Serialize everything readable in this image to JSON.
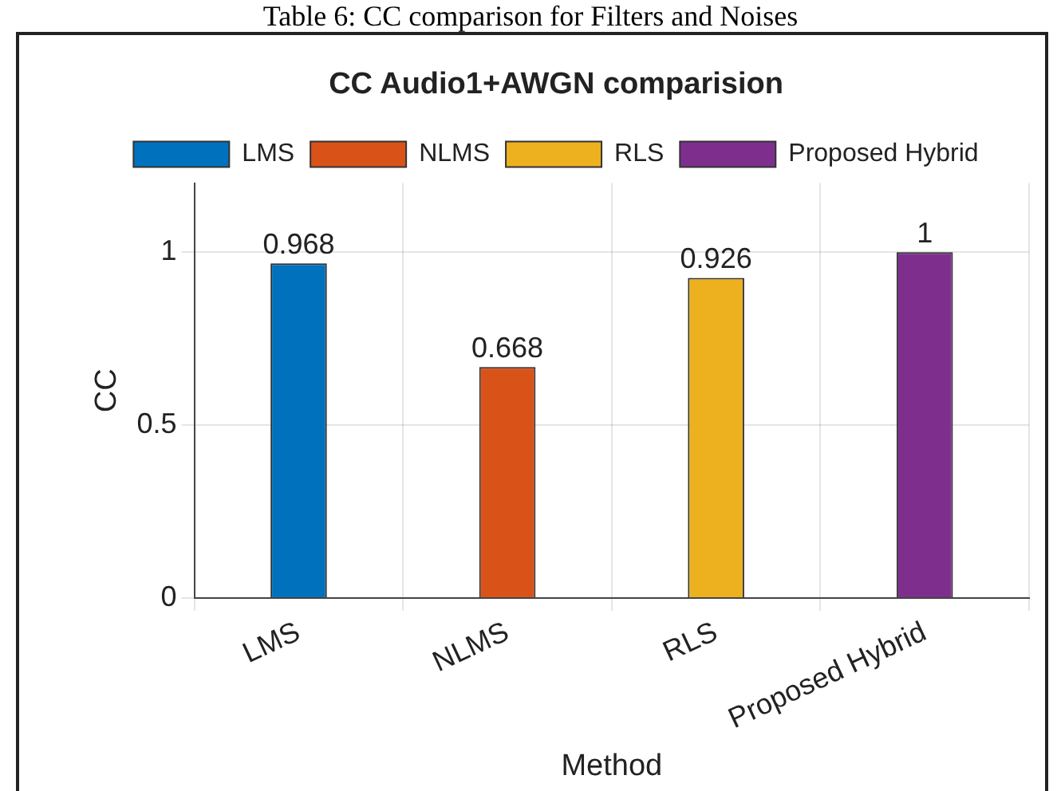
{
  "chart_data": {
    "type": "bar",
    "title": "CC Audio1+AWGN comparision",
    "xlabel": "Method",
    "ylabel": "CC",
    "annotations": [
      "Table 6: CC comparison for Filters and Noises"
    ],
    "categories": [
      "LMS",
      "NLMS",
      "RLS",
      "Proposed Hybrid"
    ],
    "series": [
      {
        "name": "LMS",
        "color": "#0072bd",
        "values": [
          0.968,
          null,
          null,
          null
        ]
      },
      {
        "name": "NLMS",
        "color": "#d95319",
        "values": [
          null,
          0.668,
          null,
          null
        ]
      },
      {
        "name": "RLS",
        "color": "#edb120",
        "values": [
          null,
          null,
          0.926,
          null
        ]
      },
      {
        "name": "Proposed Hybrid",
        "color": "#7e2f8e",
        "values": [
          null,
          null,
          null,
          1
        ]
      }
    ],
    "ylim": [
      0,
      1.2
    ],
    "yticks": [
      0,
      0.5,
      1
    ],
    "grid": true,
    "legend": "top",
    "data_labels": true
  }
}
